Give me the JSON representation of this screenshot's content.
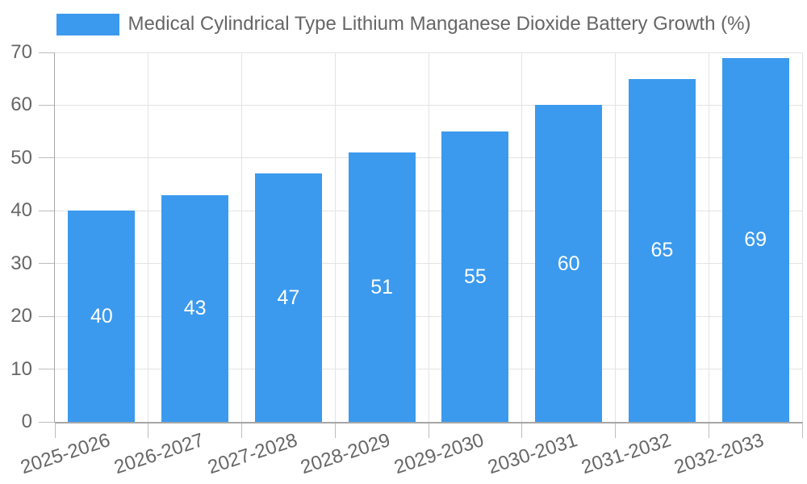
{
  "chart_data": {
    "type": "bar",
    "categories": [
      "2025-2026",
      "2026-2027",
      "2027-2028",
      "2028-2029",
      "2029-2030",
      "2030-2031",
      "2031-2032",
      "2032-2033"
    ],
    "series": [
      {
        "name": "Medical Cylindrical Type Lithium Manganese Dioxide Battery Growth (%)",
        "values": [
          40,
          43,
          47,
          51,
          55,
          60,
          65,
          69
        ]
      }
    ],
    "title": "",
    "xlabel": "",
    "ylabel": "",
    "ylim": [
      0,
      70
    ],
    "ytick_step": 10,
    "yticks": [
      0,
      10,
      20,
      30,
      40,
      50,
      60,
      70
    ],
    "grid": true,
    "legend_position": "top",
    "bar_label_position": "center",
    "colors": {
      "bar": "#3b9aee",
      "bar_label": "#ffffff",
      "axis_text": "#666666",
      "legend_text": "#666666",
      "gridline": "#e3e3e3",
      "tick_mark": "#bdbdbd",
      "axis_line": "#a6a6a6",
      "background": "#ffffff"
    }
  }
}
